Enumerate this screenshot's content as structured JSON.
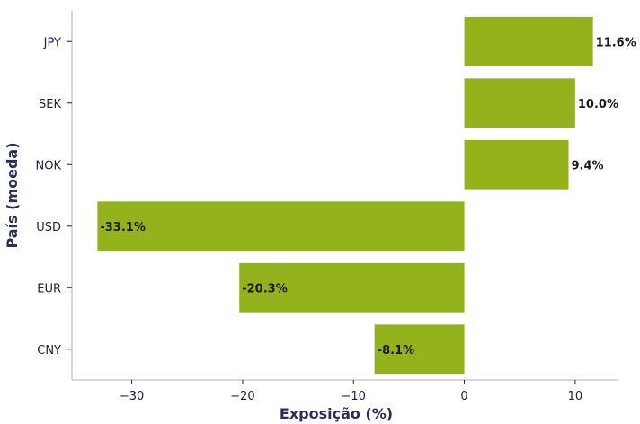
{
  "chart_data": {
    "type": "bar",
    "orientation": "horizontal",
    "categories": [
      "JPY",
      "SEK",
      "NOK",
      "USD",
      "EUR",
      "CNY"
    ],
    "values": [
      11.6,
      10.0,
      9.4,
      -33.1,
      -20.3,
      -8.1
    ],
    "value_labels": [
      "11.6%",
      "10.0%",
      "9.4%",
      "-33.1%",
      "-20.3%",
      "-8.1%"
    ],
    "xlabel": "Exposição (%)",
    "ylabel": "País (moeda)",
    "xlim": [
      -35.4,
      13.9
    ],
    "xticks": [
      -30,
      -20,
      -10,
      0,
      10
    ],
    "xtick_labels": [
      "−30",
      "−20",
      "−10",
      "0",
      "10"
    ],
    "grid": false,
    "colors": {
      "bar": "#94b21c",
      "axis_title": "#2b2d5c"
    }
  }
}
